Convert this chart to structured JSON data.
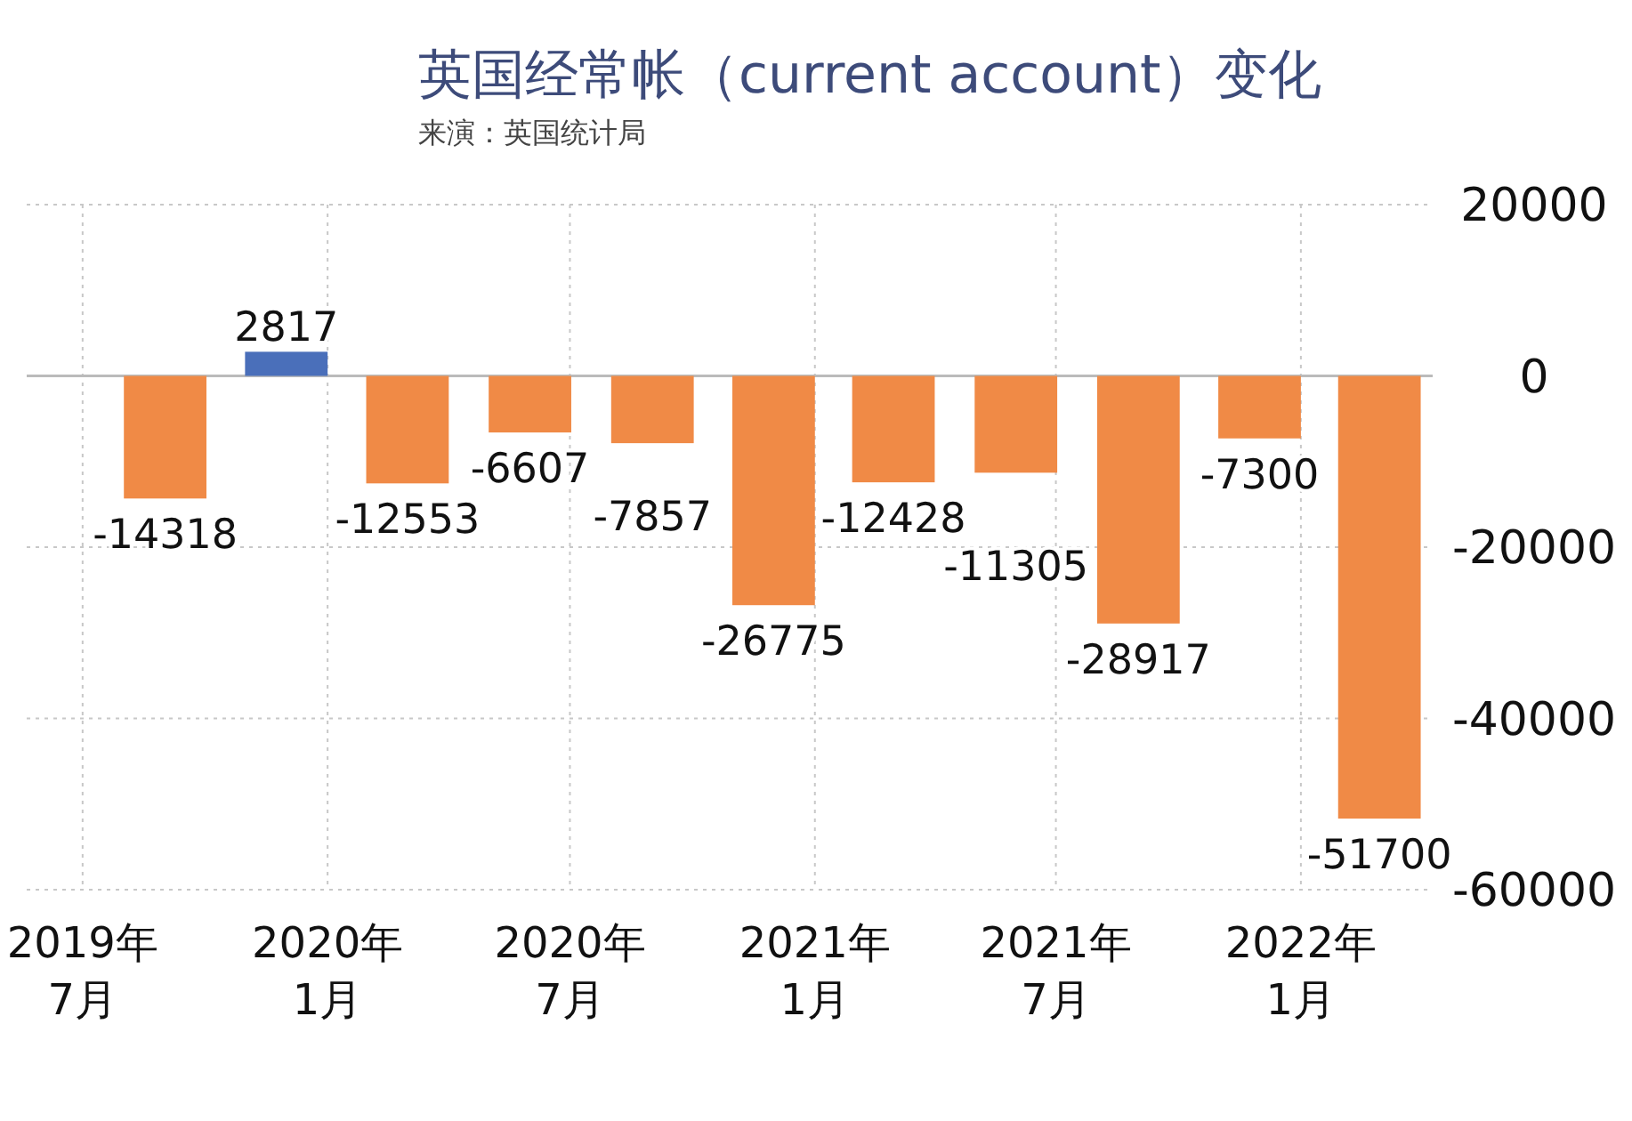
{
  "chart_data": {
    "type": "bar",
    "title": "英国经常帐（current account）变化",
    "subtitle": "来演：英国统计局",
    "x": [
      "2019-09",
      "2019-12",
      "2020-03",
      "2020-06",
      "2020-09",
      "2020-12",
      "2021-03",
      "2021-06",
      "2021-09",
      "2021-12",
      "2022-03"
    ],
    "values": [
      -14318,
      2817,
      -12553,
      -6607,
      -7857,
      -26775,
      -12428,
      -11305,
      -28917,
      -7300,
      -51700
    ],
    "colors": [
      "#f08a46",
      "#4a6fba",
      "#f08a46",
      "#f08a46",
      "#f08a46",
      "#f08a46",
      "#f08a46",
      "#f08a46",
      "#f08a46",
      "#f08a46",
      "#f08a46"
    ],
    "data_labels": true,
    "xlim": [
      "2019-05-20",
      "2022-04-10"
    ],
    "xticks": [
      {
        "value": "2019-07",
        "label": "2019年\n7月"
      },
      {
        "value": "2020-01",
        "label": "2020年\n1月"
      },
      {
        "value": "2020-07",
        "label": "2020年\n7月"
      },
      {
        "value": "2021-01",
        "label": "2021年\n1月"
      },
      {
        "value": "2021-07",
        "label": "2021年\n7月"
      },
      {
        "value": "2022-01",
        "label": "2022年\n1月"
      }
    ],
    "ylim": [
      -60000,
      20000
    ],
    "yticks": [
      20000,
      0,
      -20000,
      -40000,
      -60000
    ],
    "grid": true
  }
}
